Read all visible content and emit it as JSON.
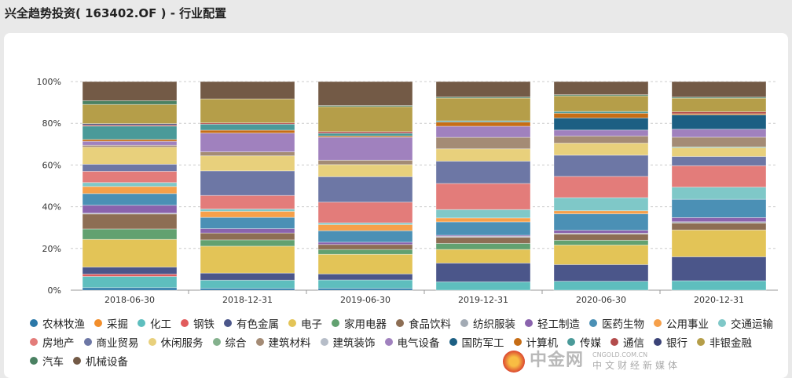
{
  "page_title": "兴全趋势投资( 163402.OF ) - 行业配置",
  "watermark": {
    "name": "中金网",
    "domain": "CNGOLD.COM.CN",
    "tagline": "中文财经新媒体"
  },
  "chart_data": {
    "type": "bar",
    "stacked": true,
    "title": "",
    "xlabel": "",
    "ylabel": "",
    "ylim": [
      0,
      100
    ],
    "yticks": [
      "0%",
      "20%",
      "40%",
      "60%",
      "80%",
      "100%"
    ],
    "grid": true,
    "legend_position": "bottom",
    "categories": [
      "2018-06-30",
      "2018-12-31",
      "2019-06-30",
      "2019-12-31",
      "2020-06-30",
      "2020-12-31"
    ],
    "series": [
      {
        "name": "农林牧渔",
        "color": "#2b78a8",
        "values": [
          1.2,
          0.9,
          0.9,
          0,
          0,
          0
        ]
      },
      {
        "name": "采掘",
        "color": "#f28e2b",
        "values": [
          0,
          0,
          0,
          0,
          0,
          0
        ]
      },
      {
        "name": "化工",
        "color": "#5ebebe",
        "values": [
          5.4,
          3.9,
          4.0,
          4.0,
          4.3,
          4.5
        ]
      },
      {
        "name": "钢铁",
        "color": "#e15b5c",
        "values": [
          1.1,
          0,
          0,
          0,
          0,
          0
        ]
      },
      {
        "name": "有色金属",
        "color": "#4b568a",
        "values": [
          3.4,
          3.4,
          2.9,
          9.0,
          8.0,
          11.4
        ]
      },
      {
        "name": "电子",
        "color": "#e3c457",
        "values": [
          13.3,
          12.9,
          9.4,
          6.5,
          9.4,
          12.8
        ]
      },
      {
        "name": "家用电器",
        "color": "#62a170",
        "values": [
          5.0,
          3.0,
          2.3,
          2.9,
          2.3,
          0
        ]
      },
      {
        "name": "食品饮料",
        "color": "#8d6e54",
        "values": [
          7.2,
          3.3,
          2.4,
          2.9,
          3.0,
          3.3
        ]
      },
      {
        "name": "纺织服装",
        "color": "#a2aab4",
        "values": [
          0.4,
          0,
          0,
          0.5,
          0.4,
          0.6
        ]
      },
      {
        "name": "轻工制造",
        "color": "#8a63ad",
        "values": [
          3.8,
          2.1,
          1.1,
          0.5,
          1.4,
          2.0
        ]
      },
      {
        "name": "医药生物",
        "color": "#4b90b5",
        "values": [
          5.6,
          5.4,
          5.5,
          6.4,
          7.9,
          8.7
        ]
      },
      {
        "name": "公用事业",
        "color": "#f6a04a",
        "values": [
          3.4,
          2.9,
          2.9,
          1.9,
          1.5,
          0
        ]
      },
      {
        "name": "交通运输",
        "color": "#7fc8c8",
        "values": [
          1.9,
          1.1,
          0.9,
          4.0,
          6.3,
          5.8
        ]
      },
      {
        "name": "房地产",
        "color": "#e37c7a",
        "values": [
          5.4,
          6.5,
          9.9,
          12.5,
          10.2,
          10.2
        ]
      },
      {
        "name": "商业贸易",
        "color": "#6d77a5",
        "values": [
          3.4,
          11.8,
          12.2,
          10.7,
          10.2,
          4.4
        ]
      },
      {
        "name": "休闲服务",
        "color": "#e8d07c",
        "values": [
          8.2,
          7.2,
          5.8,
          5.9,
          5.8,
          4.1
        ]
      },
      {
        "name": "综合",
        "color": "#84b18d",
        "values": [
          0,
          0,
          0,
          0,
          0,
          0.5
        ]
      },
      {
        "name": "建筑材料",
        "color": "#a48b75",
        "values": [
          0.9,
          1.9,
          2.1,
          5.5,
          3.4,
          4.6
        ]
      },
      {
        "name": "建筑装饰",
        "color": "#b6bdc8",
        "values": [
          0,
          0,
          0,
          0,
          0,
          0
        ]
      },
      {
        "name": "电气设备",
        "color": "#a081be",
        "values": [
          1.9,
          9.0,
          11.0,
          5.3,
          2.9,
          3.8
        ]
      },
      {
        "name": "国防军工",
        "color": "#1c5f83",
        "values": [
          0,
          0,
          0,
          0,
          5.8,
          6.8
        ]
      },
      {
        "name": "计算机",
        "color": "#c66d15",
        "values": [
          0.9,
          1.4,
          0.6,
          2.0,
          2.3,
          0.6
        ]
      },
      {
        "name": "传媒",
        "color": "#4a9a99",
        "values": [
          6.4,
          2.9,
          1.3,
          0.6,
          0.8,
          0
        ]
      },
      {
        "name": "通信",
        "color": "#b34b4b",
        "values": [
          0.6,
          0.6,
          0.8,
          0,
          0,
          0.9
        ]
      },
      {
        "name": "银行",
        "color": "#3b4377",
        "values": [
          0.6,
          0,
          0,
          0,
          0,
          0
        ]
      },
      {
        "name": "非银金融",
        "color": "#b59e49",
        "values": [
          9.2,
          11.5,
          12.0,
          10.9,
          7.5,
          6.5
        ]
      },
      {
        "name": "汽车",
        "color": "#4a8162",
        "values": [
          1.8,
          0,
          0.5,
          0.5,
          0.6,
          0.5
        ]
      },
      {
        "name": "机械设备",
        "color": "#735a46",
        "values": [
          9.2,
          8.3,
          11.5,
          7.4,
          6.3,
          7.4
        ]
      }
    ]
  }
}
